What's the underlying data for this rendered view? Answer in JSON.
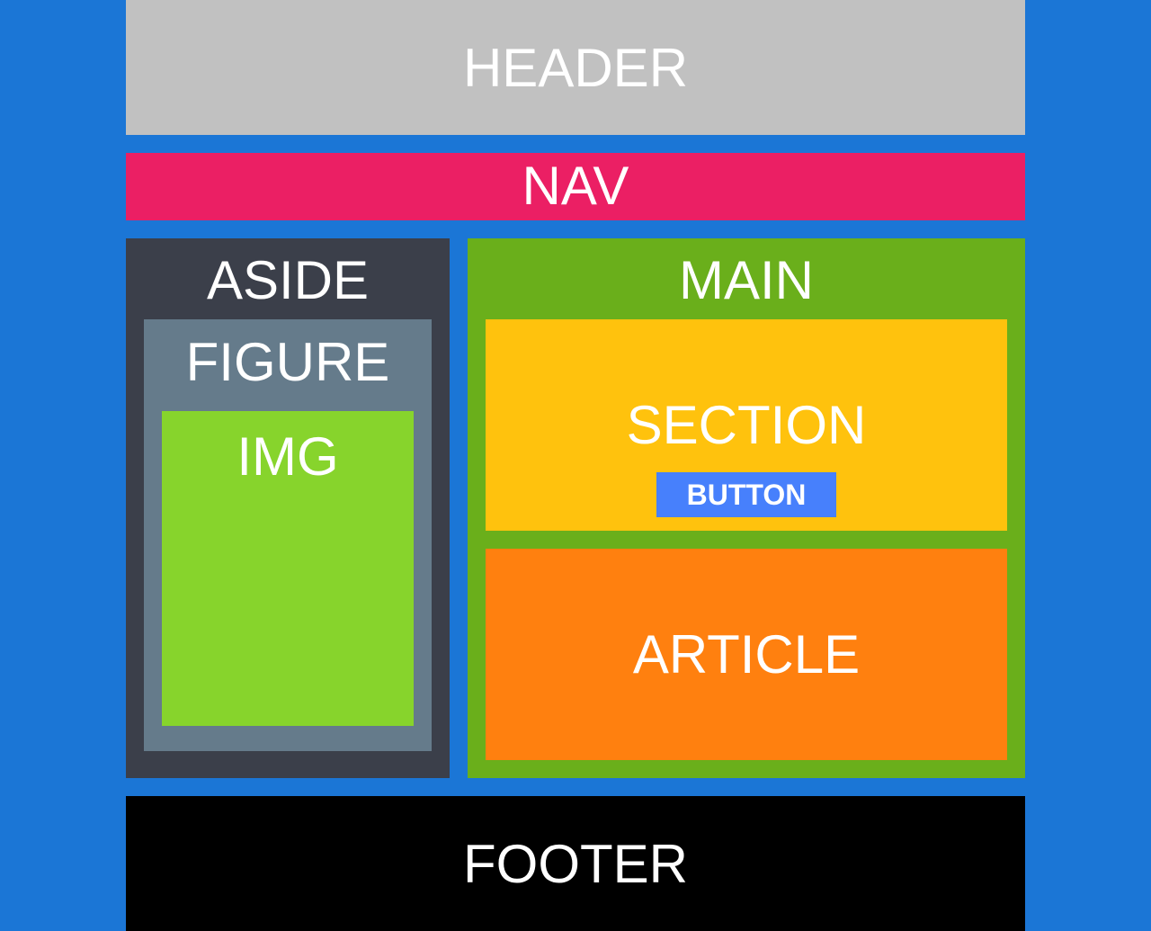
{
  "colors": {
    "background": "#1b76d6",
    "header": "#c1c1c1",
    "nav": "#eb1f64",
    "aside": "#3b3f4a",
    "figure": "#657b8b",
    "img": "#87d42c",
    "main": "#6aaf1b",
    "section": "#ffc20d",
    "button": "#4780fc",
    "article": "#ff800f",
    "footer": "#000000",
    "text": "#ffffff"
  },
  "labels": {
    "header": "HEADER",
    "nav": "NAV",
    "aside": "ASIDE",
    "figure": "FIGURE",
    "img": "IMG",
    "main": "MAIN",
    "section": "SECTION",
    "button": "BUTTON",
    "article": "ARTICLE",
    "footer": "FOOTER"
  }
}
